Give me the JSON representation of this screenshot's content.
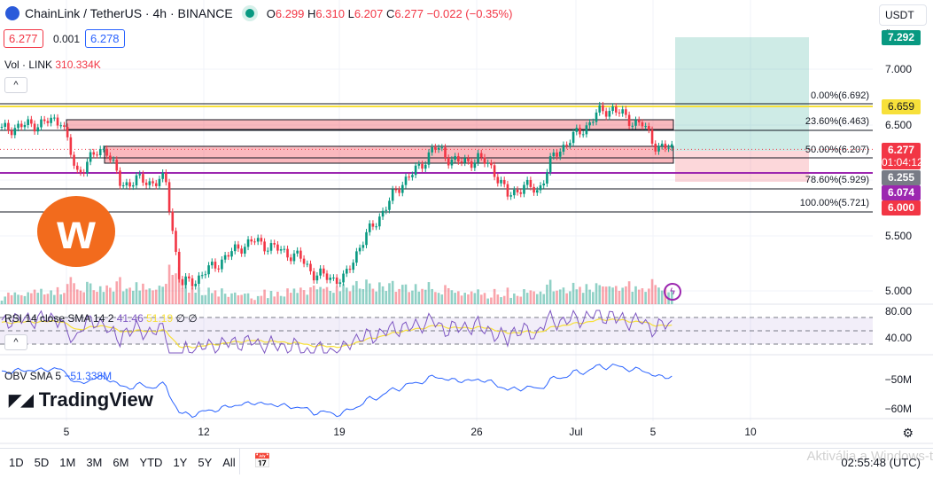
{
  "header": {
    "symbol": "ChainLink / TetherUS · 4h · BINANCE",
    "o_label": "O",
    "o": "6.299",
    "h_label": "H",
    "h": "6.310",
    "l_label": "L",
    "l": "6.207",
    "c_label": "C",
    "c": "6.277",
    "change": "−0.022 (−0.35%)"
  },
  "quote": {
    "bid": "6.277",
    "spread": "0.001",
    "ask": "6.278"
  },
  "volume": {
    "label": "Vol · LINK",
    "value": "310.334K"
  },
  "currency": "USDT",
  "price_axis": {
    "labels": [
      "7.000",
      "6.500",
      "5.500",
      "5.000"
    ]
  },
  "price_tags": {
    "target": "7.292",
    "yellow": "6.659",
    "last": "6.277",
    "countdown": "01:04:12",
    "gray": "6.255",
    "purple": "6.074",
    "red": "6.000"
  },
  "fib": [
    "0.00%(6.692)",
    "23.60%(6.463)",
    "50.00%(6.207)",
    "78.60%(5.929)",
    "100.00%(5.721)"
  ],
  "rsi": {
    "label": "RSI 14 close SMA 14 2",
    "value": "41.46",
    "sma": "51.19",
    "extra1": "∅",
    "extra2": "∅",
    "axis": [
      "80.00",
      "40.00"
    ]
  },
  "obv": {
    "label": "OBV SMA 5",
    "value": "−51.338M",
    "axis": [
      "−50M",
      "−60M"
    ]
  },
  "time_axis": [
    "5",
    "12",
    "19",
    "26",
    "Jul",
    "5",
    "10"
  ],
  "ranges": [
    "1D",
    "5D",
    "1M",
    "3M",
    "6M",
    "YTD",
    "1Y",
    "5Y",
    "All"
  ],
  "clock": "02:55:48 (UTC)",
  "brand": "TradingView",
  "watermark": "Aktiválja a Windows-t",
  "colors": {
    "up": "#089981",
    "down": "#f23645",
    "yellow": "#f7e03a",
    "purple": "#9c27b0",
    "blue": "#2962ff"
  },
  "price_path": [
    6.45,
    6.48,
    6.5,
    6.52,
    6.55,
    6.05,
    6.2,
    6.3,
    5.95,
    6.0,
    5.98,
    6.0,
    5.05,
    5.1,
    5.2,
    5.3,
    5.4,
    5.45,
    5.4,
    5.35,
    5.3,
    5.15,
    5.12,
    5.1,
    5.4,
    5.6,
    5.8,
    6.0,
    6.1,
    6.3,
    6.2,
    6.15,
    6.2,
    6.1,
    5.85,
    5.95,
    5.9,
    6.2,
    6.35,
    6.45,
    6.6,
    6.65,
    6.55,
    6.5,
    6.3,
    6.28
  ]
}
